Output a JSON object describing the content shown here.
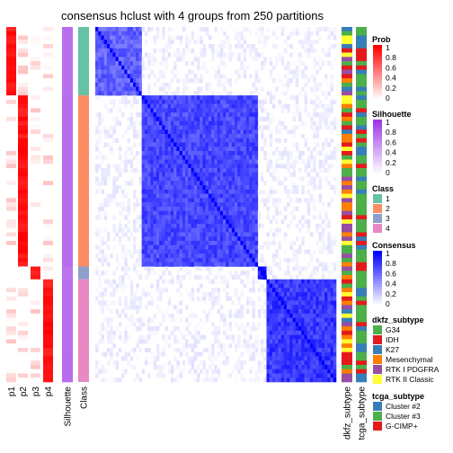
{
  "chart_data": {
    "type": "heatmap",
    "title": "consensus hclust with 4 groups from 250 partitions",
    "row_annotations": [
      "p1",
      "p2",
      "p3",
      "p4",
      "Silhouette",
      "Class"
    ],
    "column_annotations": [
      "dkfz_subtype",
      "tcga_subtype"
    ],
    "groups": [
      {
        "class": 1,
        "n": 16,
        "silhouette": 0.72
      },
      {
        "class": 2,
        "n": 40,
        "silhouette": 0.74
      },
      {
        "class": 3,
        "n": 3,
        "silhouette": 0.7
      },
      {
        "class": 4,
        "n": 24,
        "silhouette": 0.73
      }
    ],
    "legends": [
      {
        "title": "Prob",
        "type": "continuous",
        "ticks": [
          "1",
          "0.8",
          "0.6",
          "0.4",
          "0.2",
          "0"
        ],
        "colors": [
          "#ff0000",
          "#ffffff"
        ]
      },
      {
        "title": "Silhouette",
        "type": "continuous",
        "ticks": [
          "1",
          "0.8",
          "0.6",
          "0.4",
          "0.2",
          "0"
        ],
        "colors": [
          "#9e37e6",
          "#ffffff"
        ]
      },
      {
        "title": "Class",
        "type": "discrete",
        "items": [
          {
            "label": "1",
            "color": "#66c2a5"
          },
          {
            "label": "2",
            "color": "#fc8d62"
          },
          {
            "label": "3",
            "color": "#8da0cb"
          },
          {
            "label": "4",
            "color": "#e78ac3"
          }
        ]
      },
      {
        "title": "Consensus",
        "type": "continuous",
        "ticks": [
          "1",
          "0.8",
          "0.6",
          "0.4",
          "0.2",
          "0"
        ],
        "colors": [
          "#0000ff",
          "#ffffff"
        ]
      },
      {
        "title": "dkfz_subtype",
        "type": "discrete",
        "items": [
          {
            "label": "G34",
            "color": "#4daf4a"
          },
          {
            "label": "IDH",
            "color": "#e41a1c"
          },
          {
            "label": "K27",
            "color": "#377eb8"
          },
          {
            "label": "Mesenchymal",
            "color": "#ff7f00"
          },
          {
            "label": "RTK I PDGFRA",
            "color": "#984ea3"
          },
          {
            "label": "RTK II Classic",
            "color": "#ffff33"
          }
        ]
      },
      {
        "title": "tcga_subtype",
        "type": "discrete",
        "items": [
          {
            "label": "Cluster #2",
            "color": "#377eb8"
          },
          {
            "label": "Cluster #3",
            "color": "#4daf4a"
          },
          {
            "label": "G-CIMP+",
            "color": "#e41a1c"
          }
        ]
      }
    ]
  }
}
